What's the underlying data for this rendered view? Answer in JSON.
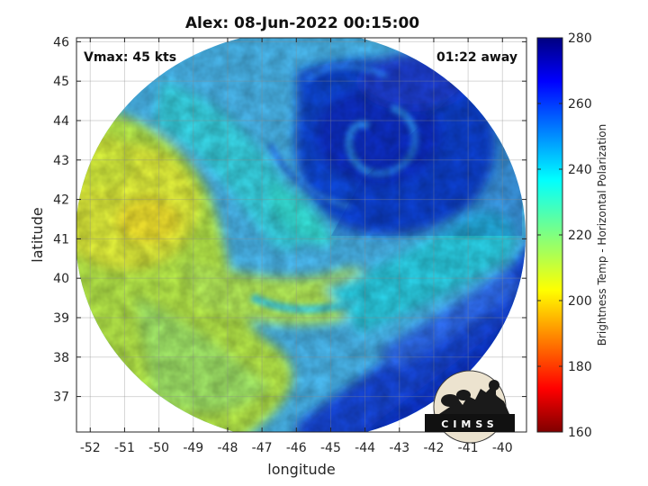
{
  "title": "Alex: 08-Jun-2022 00:15:00",
  "annotations": {
    "vmax": "Vmax: 45 kts",
    "time_away": "01:22 away"
  },
  "x_axis": {
    "label": "longitude",
    "range": [
      -52.4,
      -39.3
    ],
    "ticks": [
      -52,
      -51,
      -50,
      -49,
      -48,
      -47,
      -46,
      -45,
      -44,
      -43,
      -42,
      -41,
      -40
    ],
    "tick_labels": [
      "-52",
      "-51",
      "-50",
      "-49",
      "-48",
      "-47",
      "-46",
      "-45",
      "-44",
      "-43",
      "-42",
      "-41",
      "-40"
    ]
  },
  "y_axis": {
    "label": "latitude",
    "range": [
      36.1,
      46.1
    ],
    "ticks": [
      37,
      38,
      39,
      40,
      41,
      42,
      43,
      44,
      45,
      46
    ],
    "tick_labels": [
      "37",
      "38",
      "39",
      "40",
      "41",
      "42",
      "43",
      "44",
      "45",
      "46"
    ]
  },
  "colorbar": {
    "label": "Brightness Temp - Horizontal Polarization",
    "range": [
      160,
      280
    ],
    "ticks": [
      160,
      180,
      200,
      220,
      240,
      260,
      280
    ],
    "tick_labels": [
      "160",
      "180",
      "200",
      "220",
      "240",
      "260",
      "280"
    ],
    "colormap": "jet"
  },
  "logo_text": "CIMSS",
  "grid": true,
  "colors": {
    "cold_cloud": "#0a2fc8",
    "mid": "#17d6e8",
    "warm": "#c9ef3a"
  }
}
